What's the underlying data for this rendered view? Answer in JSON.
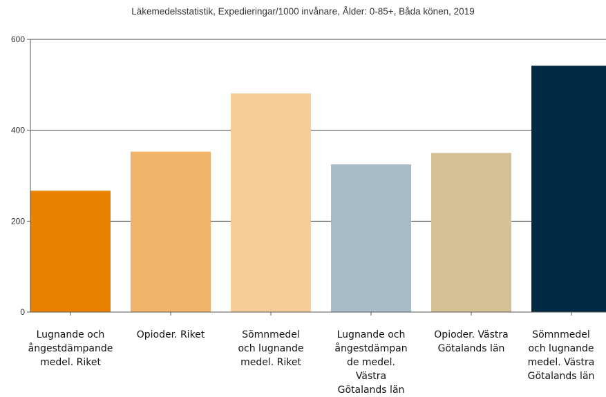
{
  "chart_data": {
    "type": "bar",
    "title": "Läkemedelsstatistik, Expedieringar/1000 invånare, Ålder: 0-85+, Båda könen, 2019",
    "xlabel": "",
    "ylabel": "",
    "ylim": [
      0,
      600
    ],
    "yticks": [
      "0",
      "200",
      "400",
      "600"
    ],
    "grid": true,
    "categories": [
      [
        "Lugnande och",
        "ångestdämpande",
        "medel. Riket"
      ],
      [
        "Opioder. Riket"
      ],
      [
        "Sömnmedel",
        "och lugnande",
        "medel. Riket"
      ],
      [
        "Lugnande och",
        "ångestdämpan",
        "de medel.",
        "Västra",
        "Götalands län"
      ],
      [
        "Opioder. Västra",
        "Götalands län"
      ],
      [
        "Sömnmedel",
        "och lugnande",
        "medel. Västra",
        "Götalands län"
      ]
    ],
    "values": [
      267,
      353,
      481,
      325,
      350,
      542
    ],
    "colors": [
      "#ea8100",
      "#f0b369",
      "#f5cd99",
      "#a9bdc8",
      "#d4c195",
      "#002a44"
    ]
  }
}
